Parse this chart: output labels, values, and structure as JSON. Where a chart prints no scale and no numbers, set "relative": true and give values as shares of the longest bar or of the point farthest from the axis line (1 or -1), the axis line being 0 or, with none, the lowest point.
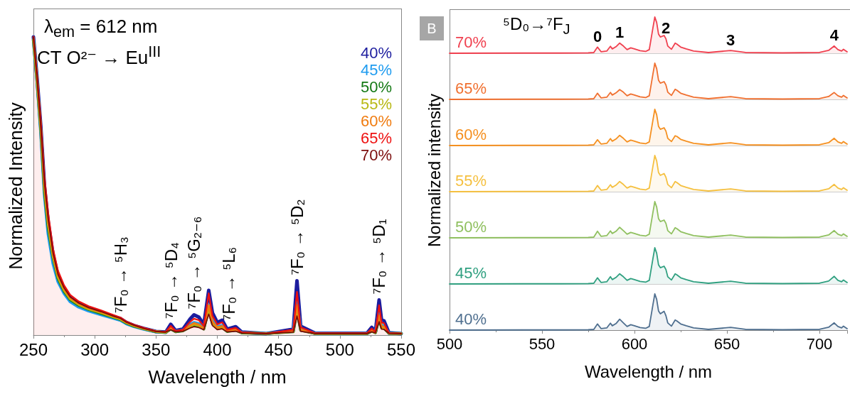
{
  "chart_data": [
    {
      "type": "line",
      "xlabel": "Wavelength / nm",
      "ylabel": "Normalized Intensity",
      "relative": true,
      "xlim": [
        250,
        550
      ],
      "xticks": [
        250,
        300,
        350,
        400,
        450,
        500,
        550
      ],
      "legend": "top right",
      "x": [
        250,
        253,
        256,
        259,
        262,
        266,
        270,
        275,
        280,
        287,
        295,
        305,
        315,
        321,
        326,
        332,
        340,
        350,
        358,
        362,
        366,
        372,
        378,
        381,
        385,
        389,
        393,
        396,
        400,
        404,
        408,
        415,
        420,
        440,
        462,
        465,
        468,
        480,
        522,
        526,
        529,
        532,
        534,
        536,
        540,
        550
      ],
      "series": [
        {
          "name": "40%",
          "color": "#1c1c9e",
          "values": [
            1.0,
            0.86,
            0.7,
            0.5,
            0.38,
            0.27,
            0.2,
            0.155,
            0.125,
            0.105,
            0.09,
            0.077,
            0.063,
            0.055,
            0.042,
            0.032,
            0.022,
            0.012,
            0.01,
            0.036,
            0.015,
            0.02,
            0.055,
            0.068,
            0.06,
            0.035,
            0.15,
            0.075,
            0.042,
            0.05,
            0.02,
            0.028,
            0.01,
            0.005,
            0.02,
            0.182,
            0.03,
            0.006,
            0.006,
            0.026,
            0.012,
            0.118,
            0.05,
            0.048,
            0.008,
            0.005
          ]
        },
        {
          "name": "45%",
          "color": "#1e9bef",
          "values": [
            0.99,
            0.85,
            0.68,
            0.47,
            0.34,
            0.24,
            0.18,
            0.14,
            0.112,
            0.094,
            0.081,
            0.069,
            0.057,
            0.05,
            0.038,
            0.029,
            0.02,
            0.011,
            0.009,
            0.025,
            0.012,
            0.016,
            0.035,
            0.042,
            0.038,
            0.024,
            0.1,
            0.048,
            0.028,
            0.032,
            0.015,
            0.02,
            0.008,
            0.005,
            0.014,
            0.11,
            0.02,
            0.005,
            0.005,
            0.016,
            0.009,
            0.072,
            0.032,
            0.03,
            0.006,
            0.005
          ]
        },
        {
          "name": "50%",
          "color": "#127812",
          "values": [
            0.99,
            0.85,
            0.69,
            0.48,
            0.36,
            0.26,
            0.19,
            0.147,
            0.119,
            0.1,
            0.086,
            0.073,
            0.06,
            0.052,
            0.04,
            0.03,
            0.021,
            0.011,
            0.009,
            0.02,
            0.011,
            0.014,
            0.028,
            0.032,
            0.03,
            0.02,
            0.085,
            0.038,
            0.022,
            0.025,
            0.012,
            0.016,
            0.007,
            0.005,
            0.011,
            0.08,
            0.016,
            0.005,
            0.005,
            0.013,
            0.008,
            0.055,
            0.024,
            0.023,
            0.006,
            0.005
          ]
        },
        {
          "name": "55%",
          "color": "#b8b814",
          "values": [
            0.99,
            0.85,
            0.69,
            0.49,
            0.37,
            0.262,
            0.194,
            0.15,
            0.121,
            0.102,
            0.087,
            0.075,
            0.061,
            0.053,
            0.041,
            0.031,
            0.021,
            0.012,
            0.009,
            0.022,
            0.012,
            0.015,
            0.03,
            0.036,
            0.032,
            0.021,
            0.09,
            0.04,
            0.024,
            0.027,
            0.013,
            0.017,
            0.008,
            0.005,
            0.012,
            0.09,
            0.017,
            0.005,
            0.005,
            0.014,
            0.008,
            0.06,
            0.026,
            0.025,
            0.006,
            0.005
          ]
        },
        {
          "name": "60%",
          "color": "#f07c10",
          "values": [
            1.0,
            0.86,
            0.7,
            0.5,
            0.38,
            0.27,
            0.2,
            0.155,
            0.125,
            0.105,
            0.09,
            0.077,
            0.063,
            0.055,
            0.042,
            0.032,
            0.022,
            0.012,
            0.01,
            0.024,
            0.012,
            0.016,
            0.033,
            0.04,
            0.035,
            0.022,
            0.1,
            0.045,
            0.026,
            0.03,
            0.014,
            0.018,
            0.008,
            0.005,
            0.013,
            0.1,
            0.018,
            0.005,
            0.005,
            0.015,
            0.009,
            0.066,
            0.029,
            0.028,
            0.006,
            0.005
          ]
        },
        {
          "name": "65%",
          "color": "#ee1010",
          "type": "area",
          "values": [
            1.0,
            0.87,
            0.72,
            0.53,
            0.41,
            0.29,
            0.216,
            0.167,
            0.135,
            0.113,
            0.097,
            0.083,
            0.068,
            0.059,
            0.045,
            0.035,
            0.024,
            0.013,
            0.011,
            0.031,
            0.014,
            0.018,
            0.045,
            0.055,
            0.05,
            0.03,
            0.14,
            0.065,
            0.036,
            0.043,
            0.018,
            0.024,
            0.009,
            0.005,
            0.018,
            0.145,
            0.026,
            0.006,
            0.006,
            0.022,
            0.011,
            0.1,
            0.042,
            0.04,
            0.007,
            0.005
          ]
        },
        {
          "name": "70%",
          "color": "#7a0a0a",
          "values": [
            1.0,
            0.86,
            0.7,
            0.51,
            0.39,
            0.275,
            0.204,
            0.158,
            0.128,
            0.107,
            0.092,
            0.079,
            0.064,
            0.056,
            0.043,
            0.033,
            0.022,
            0.012,
            0.01,
            0.018,
            0.011,
            0.013,
            0.024,
            0.028,
            0.025,
            0.018,
            0.07,
            0.032,
            0.018,
            0.021,
            0.011,
            0.013,
            0.007,
            0.005,
            0.01,
            0.064,
            0.013,
            0.005,
            0.005,
            0.011,
            0.007,
            0.045,
            0.02,
            0.019,
            0.006,
            0.005
          ]
        }
      ],
      "annotations": [
        "λ$_{em}$ = 612 nm",
        "CT O²⁻ → Eu$^{III}$",
        {
          "text": "⁷F₀ → ⁵H₃",
          "x": 321,
          "y": 0.055
        },
        {
          "text": "⁷F₀ → ⁵D₄",
          "x": 362,
          "y": 0.036
        },
        {
          "text": "⁷F₀ → ⁵G₂₋₆",
          "x": 381,
          "y": 0.068
        },
        {
          "text": "⁷F₀ → ⁵L₆",
          "x": 409,
          "y": 0.03
        },
        {
          "text": "⁷F₀ → ⁵D₂",
          "x": 465,
          "y": 0.182
        },
        {
          "text": "⁷F₀ → ⁵D₁",
          "x": 532,
          "y": 0.118
        }
      ]
    },
    {
      "type": "area",
      "relative": true,
      "xlim": [
        500,
        715
      ],
      "xticks": [
        500,
        550,
        600,
        650,
        700
      ],
      "tick_labels": false,
      "x": [
        500,
        540,
        560,
        575,
        578,
        580,
        582,
        585,
        587,
        588,
        590,
        592,
        594,
        596,
        598,
        600,
        603,
        606,
        608,
        610,
        611,
        612,
        613,
        614,
        616,
        617,
        618,
        620,
        622,
        623,
        625,
        628,
        632,
        640,
        652,
        660,
        680,
        700,
        705,
        708,
        710,
        712,
        713,
        715
      ],
      "series": [
        {
          "name": "70%",
          "color": "#f0404f",
          "values": [
            0,
            0.005,
            0.005,
            0.01,
            0.02,
            0.17,
            0.04,
            0.06,
            0.19,
            0.12,
            0.18,
            0.28,
            0.2,
            0.1,
            0.15,
            0.12,
            0.07,
            0.05,
            0.1,
            0.71,
            1.0,
            0.85,
            0.53,
            0.45,
            0.49,
            0.4,
            0.2,
            0.11,
            0.28,
            0.25,
            0.17,
            0.12,
            0.06,
            0.02,
            0.075,
            0.02,
            0.01,
            0.02,
            0.08,
            0.2,
            0.1,
            0.06,
            0.11,
            0.04
          ]
        }
      ],
      "annotations": [
        "B",
        "⁵D₀→⁷F$_{J}$",
        {
          "text": "0",
          "x": 580,
          "y": 0.17
        },
        {
          "text": "1",
          "x": 592,
          "y": 0.28
        },
        {
          "text": "2",
          "x": 617,
          "y": 0.4
        },
        {
          "text": "3",
          "x": 652,
          "y": 0.075
        },
        {
          "text": "4",
          "x": 708,
          "y": 0.2
        }
      ]
    },
    {
      "type": "area",
      "relative": true,
      "xlim": [
        500,
        715
      ],
      "xticks": [
        500,
        550,
        600,
        650,
        700
      ],
      "tick_labels": false,
      "x": [
        500,
        540,
        560,
        575,
        578,
        580,
        582,
        585,
        587,
        588,
        590,
        592,
        594,
        596,
        598,
        600,
        603,
        606,
        608,
        610,
        611,
        612,
        613,
        614,
        616,
        617,
        618,
        620,
        622,
        623,
        625,
        628,
        632,
        640,
        652,
        660,
        680,
        700,
        705,
        708,
        710,
        712,
        713,
        715
      ],
      "series": [
        {
          "name": "65%",
          "color": "#f07030",
          "values": [
            0,
            0.005,
            0.005,
            0.01,
            0.02,
            0.17,
            0.04,
            0.06,
            0.19,
            0.12,
            0.18,
            0.27,
            0.2,
            0.1,
            0.15,
            0.12,
            0.07,
            0.05,
            0.1,
            0.71,
            1.0,
            0.85,
            0.53,
            0.45,
            0.49,
            0.4,
            0.2,
            0.11,
            0.28,
            0.25,
            0.17,
            0.12,
            0.06,
            0.02,
            0.075,
            0.02,
            0.01,
            0.02,
            0.08,
            0.19,
            0.1,
            0.06,
            0.11,
            0.04
          ]
        }
      ]
    },
    {
      "type": "area",
      "relative": true,
      "xlim": [
        500,
        715
      ],
      "xticks": [
        500,
        550,
        600,
        650,
        700
      ],
      "tick_labels": false,
      "x": [
        500,
        540,
        560,
        575,
        578,
        580,
        582,
        585,
        587,
        588,
        590,
        592,
        594,
        596,
        598,
        600,
        603,
        606,
        608,
        610,
        611,
        612,
        613,
        614,
        616,
        617,
        618,
        620,
        622,
        623,
        625,
        628,
        632,
        640,
        652,
        660,
        680,
        700,
        705,
        708,
        710,
        712,
        713,
        715
      ],
      "series": [
        {
          "name": "60%",
          "color": "#f59020",
          "values": [
            0,
            0.005,
            0.005,
            0.01,
            0.02,
            0.16,
            0.04,
            0.06,
            0.19,
            0.12,
            0.18,
            0.28,
            0.2,
            0.1,
            0.15,
            0.12,
            0.07,
            0.05,
            0.1,
            0.71,
            1.0,
            0.85,
            0.53,
            0.45,
            0.49,
            0.4,
            0.2,
            0.11,
            0.27,
            0.25,
            0.17,
            0.12,
            0.06,
            0.02,
            0.075,
            0.02,
            0.01,
            0.02,
            0.08,
            0.2,
            0.1,
            0.06,
            0.11,
            0.04
          ]
        }
      ]
    },
    {
      "type": "area",
      "relative": true,
      "xlim": [
        500,
        715
      ],
      "xticks": [
        500,
        550,
        600,
        650,
        700
      ],
      "tick_labels": false,
      "ylabel": "Normalized intensity",
      "x": [
        500,
        540,
        560,
        575,
        578,
        580,
        582,
        585,
        587,
        588,
        590,
        592,
        594,
        596,
        598,
        600,
        603,
        606,
        608,
        610,
        611,
        612,
        613,
        614,
        616,
        617,
        618,
        620,
        622,
        623,
        625,
        628,
        632,
        640,
        652,
        660,
        680,
        700,
        705,
        708,
        710,
        712,
        713,
        715
      ],
      "series": [
        {
          "name": "55%",
          "color": "#f5c040",
          "values": [
            0,
            0.005,
            0.005,
            0.01,
            0.02,
            0.17,
            0.04,
            0.06,
            0.19,
            0.12,
            0.18,
            0.28,
            0.2,
            0.1,
            0.15,
            0.12,
            0.07,
            0.05,
            0.1,
            0.71,
            1.0,
            0.85,
            0.53,
            0.45,
            0.5,
            0.4,
            0.2,
            0.11,
            0.28,
            0.25,
            0.17,
            0.12,
            0.06,
            0.02,
            0.075,
            0.02,
            0.01,
            0.02,
            0.08,
            0.2,
            0.1,
            0.06,
            0.11,
            0.04
          ]
        }
      ]
    },
    {
      "type": "area",
      "relative": true,
      "xlim": [
        500,
        715
      ],
      "xticks": [
        500,
        550,
        600,
        650,
        700
      ],
      "tick_labels": false,
      "x": [
        500,
        540,
        560,
        575,
        578,
        580,
        582,
        585,
        587,
        588,
        590,
        592,
        594,
        596,
        598,
        600,
        603,
        606,
        608,
        610,
        611,
        612,
        613,
        614,
        616,
        617,
        618,
        620,
        622,
        623,
        625,
        628,
        632,
        640,
        652,
        660,
        680,
        700,
        705,
        708,
        710,
        712,
        713,
        715
      ],
      "series": [
        {
          "name": "50%",
          "color": "#90c060",
          "values": [
            0,
            0.005,
            0.005,
            0.01,
            0.02,
            0.18,
            0.04,
            0.06,
            0.19,
            0.12,
            0.18,
            0.29,
            0.2,
            0.1,
            0.15,
            0.12,
            0.07,
            0.05,
            0.1,
            0.71,
            1.0,
            0.85,
            0.53,
            0.45,
            0.49,
            0.4,
            0.2,
            0.11,
            0.28,
            0.25,
            0.17,
            0.12,
            0.06,
            0.02,
            0.075,
            0.02,
            0.01,
            0.02,
            0.08,
            0.2,
            0.1,
            0.06,
            0.11,
            0.04
          ]
        }
      ]
    },
    {
      "type": "area",
      "relative": true,
      "xlim": [
        500,
        715
      ],
      "xticks": [
        500,
        550,
        600,
        650,
        700
      ],
      "tick_labels": false,
      "x": [
        500,
        540,
        560,
        575,
        578,
        580,
        582,
        585,
        587,
        588,
        590,
        592,
        594,
        596,
        598,
        600,
        603,
        606,
        608,
        610,
        611,
        612,
        613,
        614,
        616,
        617,
        618,
        620,
        622,
        623,
        625,
        628,
        632,
        640,
        652,
        660,
        680,
        700,
        705,
        708,
        710,
        712,
        713,
        715
      ],
      "series": [
        {
          "name": "45%",
          "color": "#30a080",
          "values": [
            0,
            0.005,
            0.005,
            0.01,
            0.02,
            0.17,
            0.04,
            0.06,
            0.2,
            0.12,
            0.18,
            0.28,
            0.2,
            0.1,
            0.15,
            0.12,
            0.07,
            0.05,
            0.1,
            0.71,
            1.0,
            0.85,
            0.53,
            0.45,
            0.49,
            0.4,
            0.2,
            0.11,
            0.28,
            0.25,
            0.17,
            0.12,
            0.06,
            0.02,
            0.075,
            0.02,
            0.01,
            0.02,
            0.08,
            0.21,
            0.1,
            0.06,
            0.11,
            0.04
          ]
        }
      ]
    },
    {
      "type": "area",
      "relative": true,
      "xlim": [
        500,
        715
      ],
      "xticks": [
        500,
        550,
        600,
        650,
        700
      ],
      "xlabel": "Wavelength / nm",
      "x": [
        500,
        540,
        560,
        575,
        578,
        580,
        582,
        585,
        587,
        588,
        590,
        592,
        594,
        596,
        598,
        600,
        603,
        606,
        608,
        610,
        611,
        612,
        613,
        614,
        616,
        617,
        618,
        620,
        622,
        623,
        625,
        628,
        632,
        640,
        652,
        660,
        680,
        700,
        705,
        708,
        710,
        712,
        713,
        715
      ],
      "series": [
        {
          "name": "40%",
          "color": "#4f6f8f",
          "values": [
            0,
            0.005,
            0.005,
            0.01,
            0.02,
            0.17,
            0.04,
            0.06,
            0.19,
            0.12,
            0.18,
            0.3,
            0.2,
            0.1,
            0.15,
            0.12,
            0.07,
            0.05,
            0.1,
            0.71,
            1.0,
            0.85,
            0.53,
            0.45,
            0.52,
            0.4,
            0.2,
            0.11,
            0.28,
            0.25,
            0.17,
            0.12,
            0.06,
            0.02,
            0.075,
            0.02,
            0.01,
            0.02,
            0.08,
            0.2,
            0.1,
            0.06,
            0.11,
            0.04
          ]
        }
      ]
    }
  ]
}
